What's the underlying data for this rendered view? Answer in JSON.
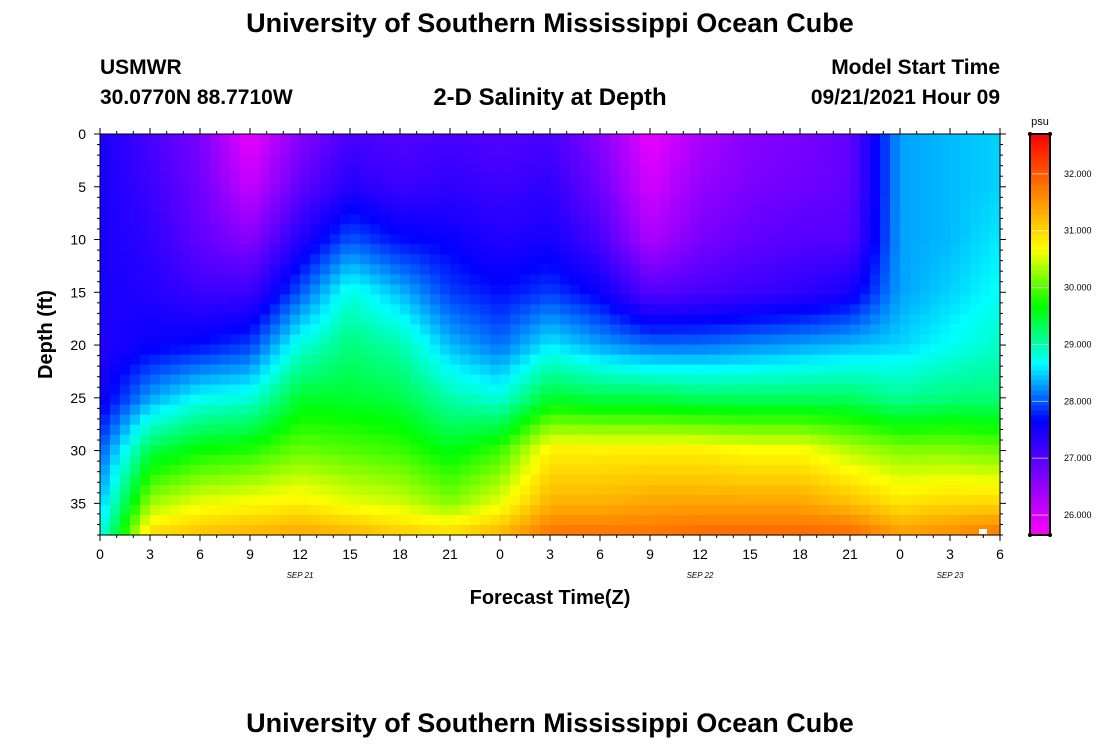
{
  "page": {
    "title_top": "University of Southern Mississippi Ocean Cube",
    "title_bottom": "University of Southern Mississippi Ocean Cube",
    "station": "USMWR",
    "coordinates": "30.0770N  88.7710W",
    "subtitle": "2-D Salinity at Depth",
    "model_start_label": "Model Start Time",
    "model_start_value": "09/21/2021 Hour 09"
  },
  "chart_data": {
    "type": "heatmap",
    "title": "2-D Salinity at Depth",
    "xlabel": "Forecast Time(Z)",
    "ylabel": "Depth (ft)",
    "x_tick_labels": [
      "0",
      "3",
      "6",
      "9",
      "12",
      "15",
      "18",
      "21",
      "0",
      "3",
      "6",
      "9",
      "12",
      "15",
      "18",
      "21",
      "0",
      "3",
      "6"
    ],
    "x_date_labels": [
      {
        "label": "SEP 21",
        "at_hour": 12
      },
      {
        "label": "SEP 22",
        "at_hour": 36
      },
      {
        "label": "SEP 23",
        "at_hour": 51
      }
    ],
    "x_range_hours": [
      0,
      54
    ],
    "y_ticks": [
      0,
      5,
      10,
      15,
      20,
      25,
      30,
      35
    ],
    "y_range_ft": [
      0,
      38
    ],
    "colorbar": {
      "unit": "psu",
      "range": [
        25.65,
        32.7
      ],
      "tick_labels": [
        "26.000",
        "27.000",
        "28.000",
        "29.000",
        "30.000",
        "31.000",
        "32.000"
      ],
      "colormap": [
        "#ff00ff",
        "#8000ff",
        "#0000ff",
        "#00ffff",
        "#00ff00",
        "#ffff00",
        "#ff8000",
        "#ff0000"
      ]
    },
    "x_hours": [
      0,
      3,
      6,
      9,
      12,
      15,
      18,
      21,
      24,
      27,
      30,
      33,
      36,
      39,
      42,
      45,
      48,
      51,
      54
    ],
    "depth_levels_ft": [
      0,
      5,
      10,
      15,
      20,
      25,
      30,
      35,
      38
    ],
    "salinity_psu": [
      [
        27.5,
        27.5,
        27.5,
        27.5,
        27.4,
        27.5,
        28.0,
        28.4,
        28.7
      ],
      [
        27.1,
        27.2,
        27.3,
        27.4,
        27.6,
        28.3,
        29.4,
        30.3,
        31.0
      ],
      [
        26.7,
        26.8,
        26.9,
        27.2,
        27.7,
        28.7,
        29.7,
        30.6,
        31.2
      ],
      [
        25.8,
        26.1,
        26.6,
        27.2,
        27.9,
        28.8,
        29.8,
        30.7,
        31.3
      ],
      [
        26.6,
        26.9,
        27.4,
        28.0,
        28.8,
        29.5,
        30.1,
        30.8,
        31.4
      ],
      [
        27.1,
        27.4,
        28.0,
        28.8,
        29.2,
        29.5,
        30.0,
        30.6,
        31.3
      ],
      [
        27.0,
        27.2,
        27.7,
        28.4,
        29.0,
        29.4,
        29.9,
        30.5,
        31.1
      ],
      [
        27.1,
        27.3,
        27.6,
        27.9,
        28.4,
        29.0,
        29.6,
        30.2,
        31.0
      ],
      [
        27.0,
        27.2,
        27.4,
        27.7,
        28.1,
        28.8,
        29.9,
        30.6,
        31.3
      ],
      [
        27.1,
        27.3,
        27.5,
        27.9,
        28.6,
        29.5,
        30.8,
        31.3,
        31.8
      ],
      [
        26.6,
        26.8,
        27.1,
        27.6,
        28.3,
        29.4,
        30.8,
        31.3,
        31.8
      ],
      [
        25.8,
        26.0,
        26.3,
        27.0,
        28.1,
        29.4,
        30.8,
        31.4,
        31.8
      ],
      [
        26.3,
        26.5,
        26.7,
        27.1,
        28.1,
        29.3,
        30.8,
        31.4,
        31.9
      ],
      [
        26.6,
        26.7,
        26.9,
        27.2,
        28.2,
        29.3,
        30.7,
        31.4,
        31.9
      ],
      [
        26.7,
        26.8,
        27.0,
        27.3,
        28.3,
        29.3,
        30.7,
        31.4,
        31.9
      ],
      [
        26.9,
        26.9,
        27.0,
        27.5,
        28.4,
        29.3,
        30.4,
        31.2,
        31.9
      ],
      [
        28.3,
        28.3,
        28.3,
        28.3,
        28.5,
        29.1,
        30.2,
        30.9,
        31.5
      ],
      [
        28.4,
        28.4,
        28.4,
        28.5,
        28.7,
        29.2,
        30.2,
        31.0,
        31.6
      ],
      [
        28.5,
        28.5,
        28.6,
        28.7,
        28.9,
        29.2,
        30.1,
        31.0,
        31.8
      ]
    ]
  }
}
